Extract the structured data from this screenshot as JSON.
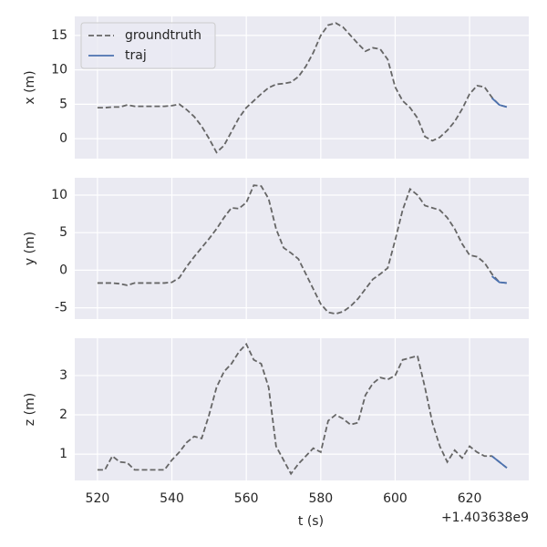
{
  "chart_data": [
    {
      "type": "line",
      "ylabel": "x (m)",
      "legend": "upper left",
      "grid": true,
      "xtick_labels": false,
      "x": [
        520,
        522,
        524,
        526,
        528,
        530,
        532,
        534,
        536,
        538,
        540,
        542,
        544,
        546,
        548,
        550,
        552,
        554,
        556,
        558,
        560,
        562,
        564,
        566,
        568,
        570,
        572,
        574,
        576,
        578,
        580,
        582,
        584,
        586,
        588,
        590,
        592,
        594,
        596,
        598,
        600,
        602,
        604,
        606,
        608,
        610,
        612,
        614,
        616,
        618,
        620,
        622,
        624,
        626,
        628,
        630
      ],
      "series": [
        {
          "name": "groundtruth",
          "color": "#666666",
          "dashed": true,
          "values": [
            4.5,
            4.5,
            4.6,
            4.6,
            4.9,
            4.7,
            4.7,
            4.7,
            4.7,
            4.7,
            4.8,
            5.0,
            4.2,
            3.2,
            1.8,
            0,
            -2.0,
            -1.0,
            1.0,
            3.0,
            4.5,
            5.5,
            6.5,
            7.4,
            7.9,
            8.0,
            8.2,
            9.0,
            10.5,
            12.5,
            15.0,
            16.5,
            16.8,
            16.2,
            15.0,
            13.8,
            12.7,
            13.2,
            13.0,
            11.5,
            7.5,
            5.5,
            4.5,
            3.0,
            0.3,
            -0.3,
            0.2,
            1.2,
            2.5,
            4.3,
            6.5,
            7.7,
            7.5,
            6.0,
            4.9,
            4.6
          ]
        },
        {
          "name": "traj",
          "color": "#4c72b0",
          "dashed": false,
          "values": [
            null,
            null,
            null,
            null,
            null,
            null,
            null,
            null,
            null,
            null,
            null,
            null,
            null,
            null,
            null,
            null,
            null,
            null,
            null,
            null,
            null,
            null,
            null,
            null,
            null,
            null,
            null,
            null,
            null,
            null,
            null,
            null,
            null,
            null,
            null,
            null,
            null,
            null,
            null,
            null,
            null,
            null,
            null,
            null,
            null,
            null,
            null,
            null,
            null,
            null,
            null,
            null,
            null,
            5.9,
            4.9,
            4.6
          ]
        }
      ],
      "xlim": [
        513.9,
        635.9
      ],
      "xticks": [
        520,
        540,
        560,
        580,
        600,
        620
      ],
      "ylim": [
        -2.9,
        17.76
      ],
      "yticks": [
        0,
        5,
        10,
        15
      ]
    },
    {
      "type": "line",
      "ylabel": "y (m)",
      "grid": true,
      "xtick_labels": false,
      "x": [
        520,
        522,
        524,
        526,
        528,
        530,
        532,
        534,
        536,
        538,
        540,
        542,
        544,
        546,
        548,
        550,
        552,
        554,
        556,
        558,
        560,
        562,
        564,
        566,
        568,
        570,
        572,
        574,
        576,
        578,
        580,
        582,
        584,
        586,
        588,
        590,
        592,
        594,
        596,
        598,
        600,
        602,
        604,
        606,
        608,
        610,
        612,
        614,
        616,
        618,
        620,
        622,
        624,
        626,
        628,
        630
      ],
      "series": [
        {
          "name": "groundtruth",
          "color": "#666666",
          "dashed": true,
          "values": [
            -1.7,
            -1.7,
            -1.7,
            -1.8,
            -2.0,
            -1.7,
            -1.7,
            -1.7,
            -1.7,
            -1.7,
            -1.6,
            -1.0,
            0.5,
            1.8,
            3.0,
            4.2,
            5.5,
            7.0,
            8.3,
            8.2,
            9.0,
            11.3,
            11.2,
            9.5,
            5.5,
            3.0,
            2.3,
            1.5,
            -0.5,
            -2.5,
            -4.5,
            -5.6,
            -5.8,
            -5.5,
            -4.8,
            -3.8,
            -2.5,
            -1.2,
            -0.5,
            0.3,
            4.0,
            8.0,
            10.8,
            10.0,
            8.6,
            8.3,
            8.0,
            7.0,
            5.5,
            3.5,
            2.0,
            1.8,
            1.0,
            -0.5,
            -1.6,
            -1.7
          ]
        },
        {
          "name": "traj",
          "color": "#4c72b0",
          "dashed": false,
          "values": [
            null,
            null,
            null,
            null,
            null,
            null,
            null,
            null,
            null,
            null,
            null,
            null,
            null,
            null,
            null,
            null,
            null,
            null,
            null,
            null,
            null,
            null,
            null,
            null,
            null,
            null,
            null,
            null,
            null,
            null,
            null,
            null,
            null,
            null,
            null,
            null,
            null,
            null,
            null,
            null,
            null,
            null,
            null,
            null,
            null,
            null,
            null,
            null,
            null,
            null,
            null,
            null,
            null,
            -0.8,
            -1.6,
            -1.7
          ]
        }
      ],
      "xlim": [
        513.9,
        635.9
      ],
      "xticks": [
        520,
        540,
        560,
        580,
        600,
        620
      ],
      "ylim": [
        -6.5,
        12.3
      ],
      "yticks": [
        -5,
        0,
        5,
        10
      ]
    },
    {
      "type": "line",
      "ylabel": "z (m)",
      "xlabel": "t (s)",
      "x_offset_label": "+1.403638e9",
      "grid": true,
      "xtick_labels": true,
      "x": [
        520,
        522,
        524,
        526,
        528,
        530,
        532,
        534,
        536,
        538,
        540,
        542,
        544,
        546,
        548,
        550,
        552,
        554,
        556,
        558,
        560,
        562,
        564,
        566,
        568,
        570,
        572,
        574,
        576,
        578,
        580,
        582,
        584,
        586,
        588,
        590,
        592,
        594,
        596,
        598,
        600,
        602,
        604,
        606,
        608,
        610,
        612,
        614,
        616,
        618,
        620,
        622,
        624,
        626,
        628,
        630
      ],
      "series": [
        {
          "name": "groundtruth",
          "color": "#666666",
          "dashed": true,
          "values": [
            0.6,
            0.6,
            0.95,
            0.8,
            0.78,
            0.6,
            0.6,
            0.6,
            0.6,
            0.6,
            0.85,
            1.05,
            1.3,
            1.45,
            1.4,
            2.0,
            2.7,
            3.1,
            3.3,
            3.6,
            3.8,
            3.4,
            3.3,
            2.7,
            1.2,
            0.85,
            0.5,
            0.75,
            0.95,
            1.15,
            1.05,
            1.85,
            2.0,
            1.9,
            1.75,
            1.8,
            2.5,
            2.8,
            2.95,
            2.9,
            3.0,
            3.4,
            3.45,
            3.5,
            2.7,
            1.8,
            1.2,
            0.8,
            1.1,
            0.9,
            1.2,
            1.05,
            0.95,
            0.95,
            0.8,
            0.65
          ]
        },
        {
          "name": "traj",
          "color": "#4c72b0",
          "dashed": false,
          "values": [
            null,
            null,
            null,
            null,
            null,
            null,
            null,
            null,
            null,
            null,
            null,
            null,
            null,
            null,
            null,
            null,
            null,
            null,
            null,
            null,
            null,
            null,
            null,
            null,
            null,
            null,
            null,
            null,
            null,
            null,
            null,
            null,
            null,
            null,
            null,
            null,
            null,
            null,
            null,
            null,
            null,
            null,
            null,
            null,
            null,
            null,
            null,
            null,
            null,
            null,
            null,
            null,
            null,
            0.95,
            0.8,
            0.65
          ]
        }
      ],
      "xlim": [
        513.9,
        635.9
      ],
      "xticks": [
        520,
        540,
        560,
        580,
        600,
        620
      ],
      "ylim": [
        0.33,
        3.95
      ],
      "yticks": [
        1,
        2,
        3
      ]
    }
  ]
}
